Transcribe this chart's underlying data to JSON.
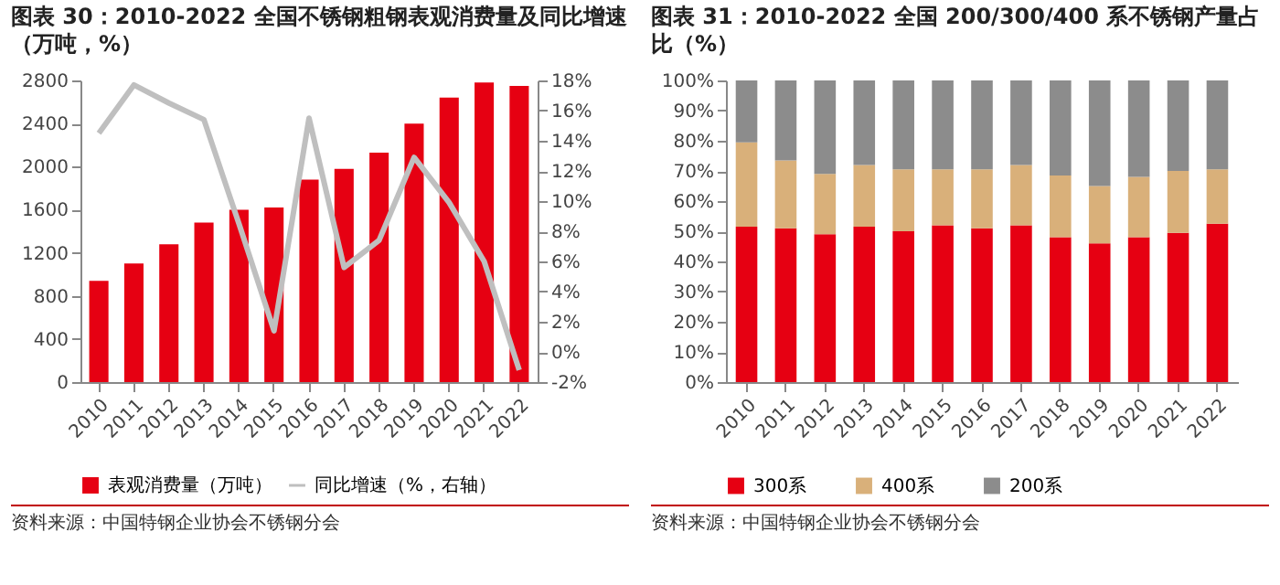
{
  "chart_data": [
    {
      "type": "bar",
      "title": "图表 30：2010-2022 全国不锈钢粗钢表观消费量及同比增速（万吨，%）",
      "annotations": [
        "资料来源：中国特钢企业协会不锈钢分会"
      ],
      "categories": [
        "2010",
        "2011",
        "2012",
        "2013",
        "2014",
        "2015",
        "2016",
        "2017",
        "2018",
        "2019",
        "2020",
        "2021",
        "2022"
      ],
      "series": [
        {
          "name": "表观消费量（万吨）",
          "type": "bar",
          "color": "#e60012",
          "values": [
            940,
            1100,
            1280,
            1480,
            1600,
            1620,
            1880,
            1980,
            2130,
            2400,
            2640,
            2780,
            2750
          ]
        },
        {
          "name": "同比增速（%，右轴）",
          "type": "line",
          "axis": "y2",
          "color": "#bfbfbf",
          "values": [
            14.5,
            17.7,
            16.5,
            15.4,
            8.5,
            1.4,
            15.5,
            5.6,
            7.4,
            12.9,
            9.9,
            6.0,
            -1.2
          ]
        }
      ],
      "ylim": [
        0,
        2800
      ],
      "yticks": [
        0,
        400,
        800,
        1200,
        1600,
        2000,
        2400,
        2800
      ],
      "y2lim": [
        -2,
        18
      ],
      "y2ticks": [
        {
          "value": -2,
          "label": "-2%"
        },
        {
          "value": 0,
          "label": "0%"
        },
        {
          "value": 2,
          "label": "2%"
        },
        {
          "value": 4,
          "label": "4%"
        },
        {
          "value": 6,
          "label": "6%"
        },
        {
          "value": 8,
          "label": "8%"
        },
        {
          "value": 10,
          "label": "10%"
        },
        {
          "value": 12,
          "label": "12%"
        },
        {
          "value": 14,
          "label": "14%"
        },
        {
          "value": 16,
          "label": "16%"
        },
        {
          "value": 18,
          "label": "18%"
        }
      ],
      "grid": false,
      "legend": "bottom"
    },
    {
      "type": "bar",
      "title": "图表 31：2010-2022 全国 200/300/400 系不锈钢产量占比（%）",
      "annotations": [
        "资料来源：中国特钢企业协会不锈钢分会"
      ],
      "categories": [
        "2010",
        "2011",
        "2012",
        "2013",
        "2014",
        "2015",
        "2016",
        "2017",
        "2018",
        "2019",
        "2020",
        "2021",
        "2022"
      ],
      "stacked": true,
      "series": [
        {
          "name": "300系",
          "color": "#e60012",
          "values": [
            51.5,
            51,
            49,
            51.5,
            50,
            52,
            51,
            52,
            48,
            46,
            48,
            49.5,
            52.5
          ]
        },
        {
          "name": "400系",
          "color": "#d9b07a",
          "values": [
            28,
            22.5,
            20,
            20.5,
            20.5,
            18.5,
            19.5,
            20,
            20.5,
            19,
            20,
            20.5,
            18
          ]
        },
        {
          "name": "200系",
          "color": "#8c8c8c",
          "values": [
            20.5,
            26.5,
            31,
            28,
            29.5,
            29.5,
            29.5,
            28,
            31.5,
            35,
            32,
            30,
            29.5
          ]
        }
      ],
      "ylim": [
        0,
        100
      ],
      "yticks": [
        {
          "value": 0,
          "label": "0%"
        },
        {
          "value": 10,
          "label": "10%"
        },
        {
          "value": 20,
          "label": "20%"
        },
        {
          "value": 30,
          "label": "30%"
        },
        {
          "value": 40,
          "label": "40%"
        },
        {
          "value": 50,
          "label": "50%"
        },
        {
          "value": 60,
          "label": "60%"
        },
        {
          "value": 70,
          "label": "70%"
        },
        {
          "value": 80,
          "label": "80%"
        },
        {
          "value": 90,
          "label": "90%"
        },
        {
          "value": 100,
          "label": "100%"
        }
      ],
      "grid": false,
      "legend": "bottom"
    }
  ]
}
